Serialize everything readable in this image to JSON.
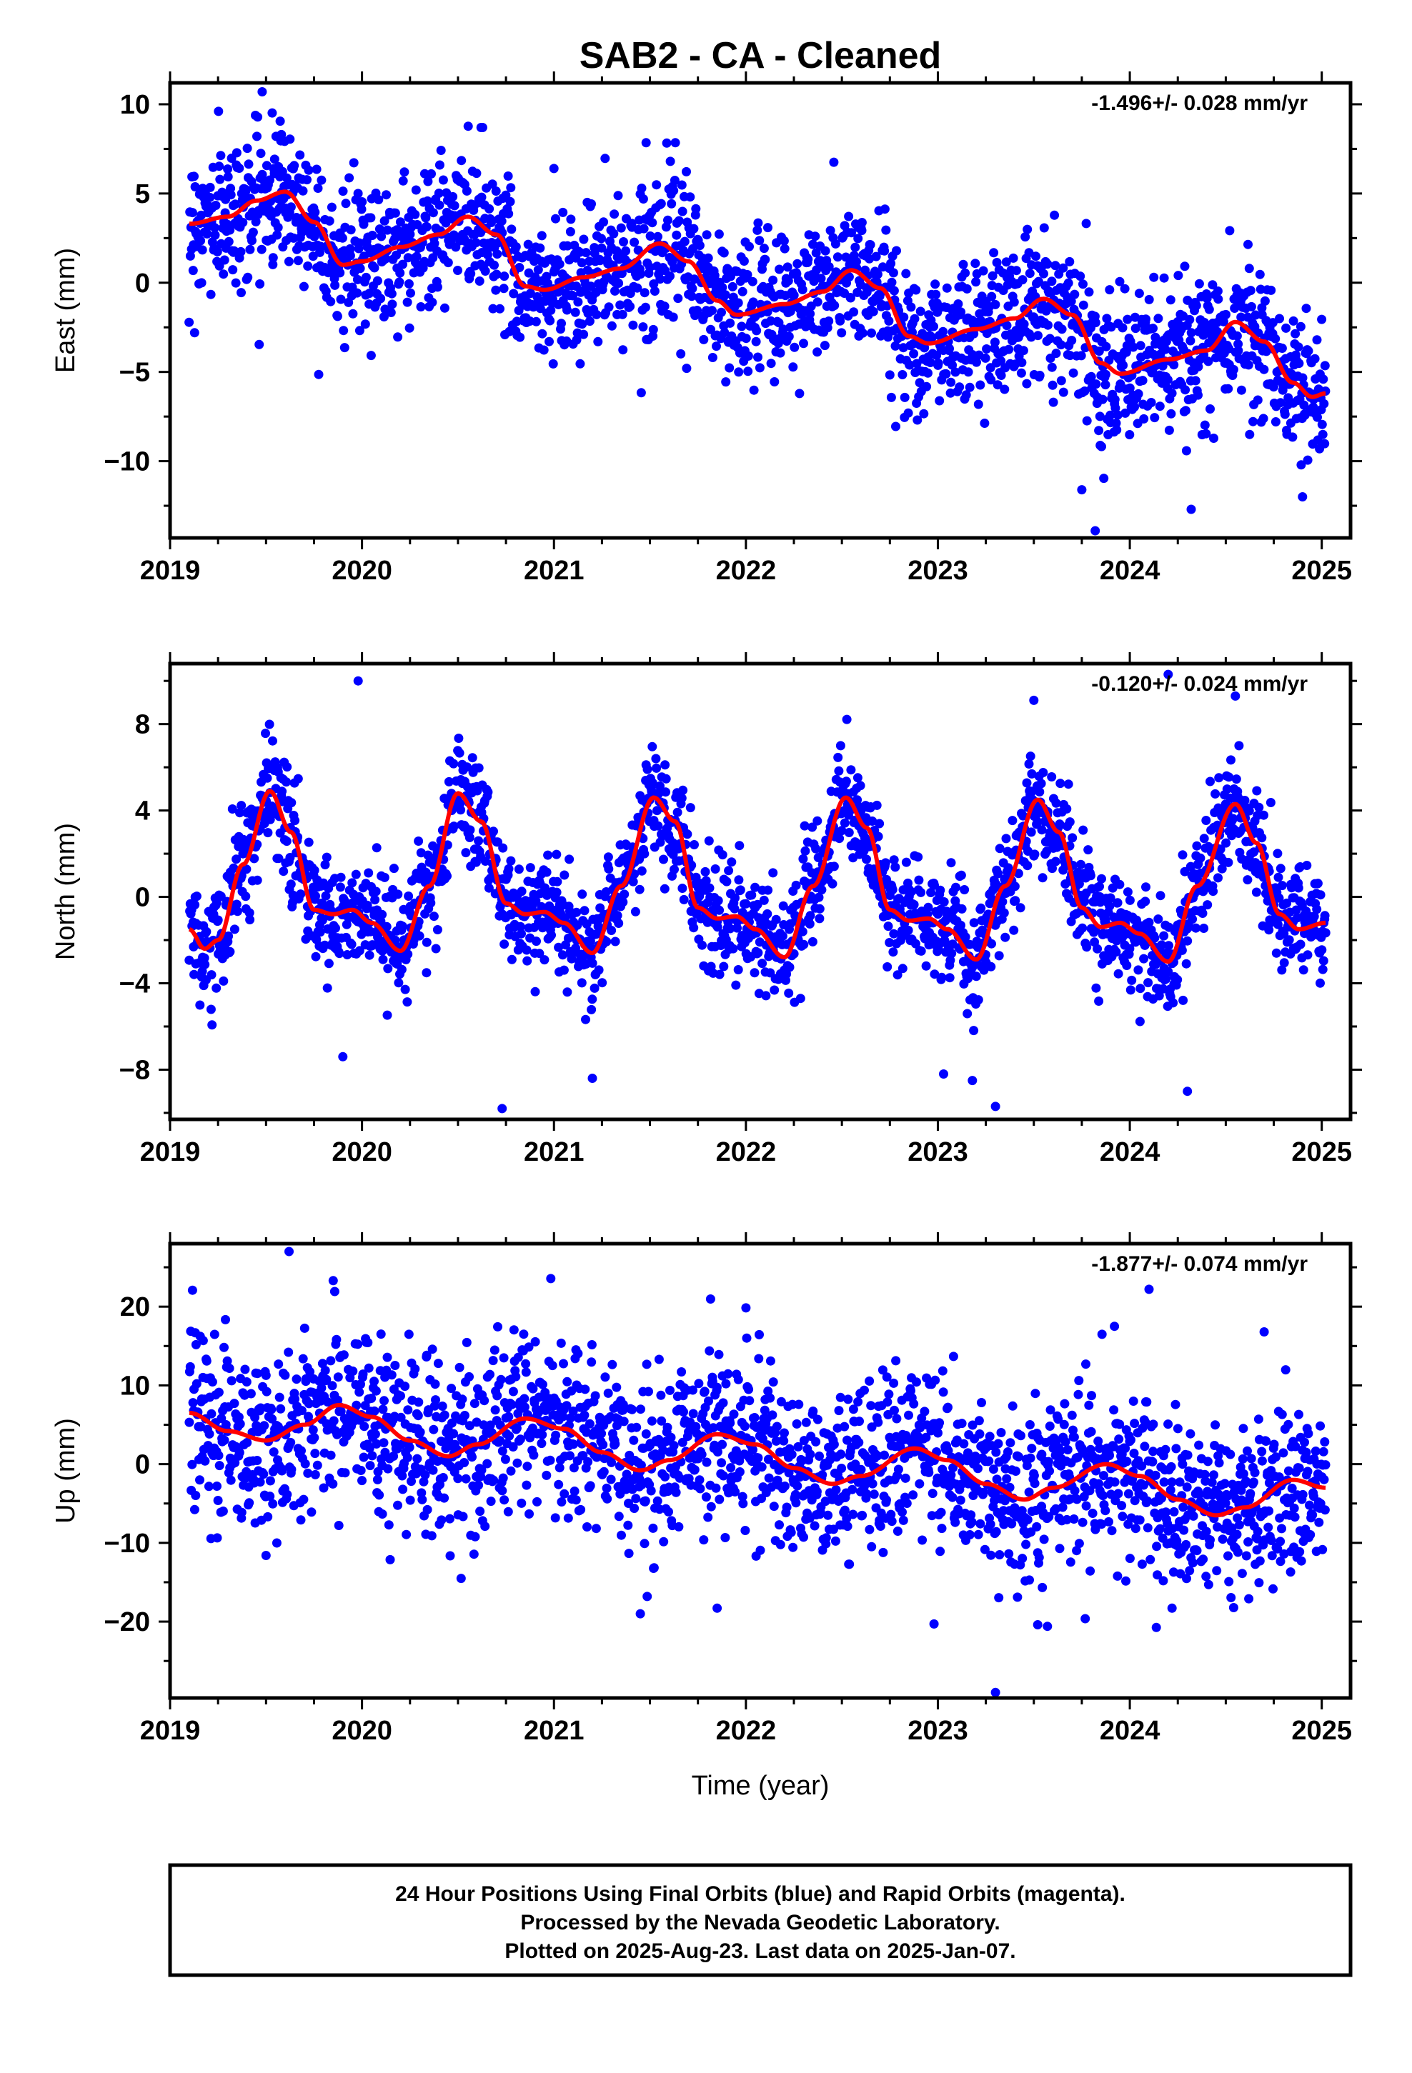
{
  "title": "SAB2  - CA - Cleaned",
  "xlabel": "Time (year)",
  "footer": {
    "line1": "24 Hour Positions Using Final Orbits (blue) and Rapid Orbits (magenta).",
    "line2": "Processed by the Nevada Geodetic Laboratory.",
    "line3": "Plotted on 2025-Aug-23. Last data on 2025-Jan-07."
  },
  "colors": {
    "points": "#0000ff",
    "model": "#ff0000",
    "frame": "#000000"
  },
  "chart_data": [
    {
      "type": "scatter",
      "ylabel": "East (mm)",
      "rate_label": "-1.496+/- 0.028 mm/yr",
      "xlim": [
        2019.0,
        2025.15
      ],
      "ylim": [
        -14.3,
        11.2
      ],
      "x_ticks": [
        2019,
        2020,
        2021,
        2022,
        2023,
        2024,
        2025
      ],
      "y_ticks": [
        -10,
        -5,
        0,
        5,
        10
      ],
      "y_tick_labels": [
        "−10",
        "−5",
        "0",
        "5",
        "10"
      ],
      "data_start": 2019.1,
      "data_end": 2025.02,
      "model_points": [
        [
          2019.1,
          3.3
        ],
        [
          2019.3,
          3.7
        ],
        [
          2019.45,
          4.6
        ],
        [
          2019.6,
          5.1
        ],
        [
          2019.75,
          3.4
        ],
        [
          2019.9,
          1.0
        ],
        [
          2020.0,
          1.2
        ],
        [
          2020.2,
          2.0
        ],
        [
          2020.4,
          2.7
        ],
        [
          2020.55,
          3.7
        ],
        [
          2020.7,
          2.7
        ],
        [
          2020.85,
          -0.2
        ],
        [
          2020.95,
          -0.4
        ],
        [
          2021.15,
          0.3
        ],
        [
          2021.35,
          0.8
        ],
        [
          2021.55,
          2.2
        ],
        [
          2021.7,
          1.2
        ],
        [
          2021.85,
          -1.0
        ],
        [
          2021.95,
          -1.8
        ],
        [
          2022.2,
          -1.2
        ],
        [
          2022.4,
          -0.5
        ],
        [
          2022.55,
          0.7
        ],
        [
          2022.7,
          -0.3
        ],
        [
          2022.85,
          -3.0
        ],
        [
          2022.95,
          -3.4
        ],
        [
          2023.2,
          -2.6
        ],
        [
          2023.4,
          -2.0
        ],
        [
          2023.55,
          -0.9
        ],
        [
          2023.7,
          -1.8
        ],
        [
          2023.85,
          -4.5
        ],
        [
          2023.95,
          -5.1
        ],
        [
          2024.2,
          -4.3
        ],
        [
          2024.4,
          -3.8
        ],
        [
          2024.55,
          -2.2
        ],
        [
          2024.7,
          -3.3
        ],
        [
          2024.85,
          -5.6
        ],
        [
          2024.95,
          -6.4
        ],
        [
          2025.02,
          -6.2
        ]
      ],
      "noise_sd": 2.0,
      "outliers": [
        [
          2019.48,
          10.7
        ],
        [
          2020.62,
          8.7
        ],
        [
          2023.82,
          -13.9
        ],
        [
          2024.32,
          -12.7
        ],
        [
          2019.58,
          8.3
        ],
        [
          2021.0,
          6.4
        ],
        [
          2023.75,
          -11.6
        ],
        [
          2024.9,
          -12.0
        ]
      ]
    },
    {
      "type": "scatter",
      "ylabel": "North (mm)",
      "rate_label": "-0.120+/- 0.024 mm/yr",
      "xlim": [
        2019.0,
        2025.15
      ],
      "ylim": [
        -10.3,
        10.8
      ],
      "x_ticks": [
        2019,
        2020,
        2021,
        2022,
        2023,
        2024,
        2025
      ],
      "y_ticks": [
        -8,
        -4,
        0,
        4,
        8
      ],
      "y_tick_labels": [
        "−8",
        "−4",
        "0",
        "4",
        "8"
      ],
      "data_start": 2019.1,
      "data_end": 2025.02,
      "model_points": [
        [
          2019.1,
          -1.5
        ],
        [
          2019.18,
          -2.4
        ],
        [
          2019.25,
          -2.0
        ],
        [
          2019.38,
          1.5
        ],
        [
          2019.52,
          4.9
        ],
        [
          2019.63,
          3.0
        ],
        [
          2019.75,
          -0.6
        ],
        [
          2019.85,
          -0.8
        ],
        [
          2019.95,
          -0.6
        ],
        [
          2020.05,
          -1.2
        ],
        [
          2020.2,
          -2.5
        ],
        [
          2020.35,
          0.5
        ],
        [
          2020.5,
          4.8
        ],
        [
          2020.62,
          3.5
        ],
        [
          2020.75,
          -0.3
        ],
        [
          2020.85,
          -0.8
        ],
        [
          2020.95,
          -0.7
        ],
        [
          2021.05,
          -1.2
        ],
        [
          2021.2,
          -2.6
        ],
        [
          2021.35,
          0.5
        ],
        [
          2021.52,
          4.6
        ],
        [
          2021.63,
          3.5
        ],
        [
          2021.75,
          -0.5
        ],
        [
          2021.85,
          -1.0
        ],
        [
          2021.95,
          -0.9
        ],
        [
          2022.05,
          -1.5
        ],
        [
          2022.2,
          -2.8
        ],
        [
          2022.35,
          0.5
        ],
        [
          2022.52,
          4.6
        ],
        [
          2022.63,
          3.2
        ],
        [
          2022.75,
          -0.6
        ],
        [
          2022.85,
          -1.1
        ],
        [
          2022.95,
          -1.0
        ],
        [
          2023.05,
          -1.5
        ],
        [
          2023.2,
          -2.9
        ],
        [
          2023.35,
          0.5
        ],
        [
          2023.52,
          4.5
        ],
        [
          2023.63,
          3.0
        ],
        [
          2023.75,
          -0.5
        ],
        [
          2023.85,
          -1.4
        ],
        [
          2023.95,
          -1.2
        ],
        [
          2024.05,
          -1.7
        ],
        [
          2024.2,
          -3.0
        ],
        [
          2024.35,
          0.5
        ],
        [
          2024.55,
          4.3
        ],
        [
          2024.66,
          2.5
        ],
        [
          2024.78,
          -0.8
        ],
        [
          2024.88,
          -1.5
        ],
        [
          2025.02,
          -1.2
        ]
      ],
      "noise_sd": 1.3,
      "outliers": [
        [
          2019.98,
          10.0
        ],
        [
          2024.2,
          10.3
        ],
        [
          2024.55,
          9.3
        ],
        [
          2023.5,
          9.1
        ],
        [
          2020.73,
          -9.8
        ],
        [
          2023.3,
          -9.7
        ],
        [
          2019.9,
          -7.4
        ],
        [
          2021.2,
          -8.4
        ],
        [
          2023.03,
          -8.2
        ],
        [
          2024.3,
          -9.0
        ],
        [
          2023.18,
          -8.5
        ]
      ]
    },
    {
      "type": "scatter",
      "ylabel": "Up (mm)",
      "rate_label": "-1.877+/- 0.074 mm/yr",
      "xlim": [
        2019.0,
        2025.15
      ],
      "ylim": [
        -29.7,
        28.0
      ],
      "x_ticks": [
        2019,
        2020,
        2021,
        2022,
        2023,
        2024,
        2025
      ],
      "y_ticks": [
        -20,
        -10,
        0,
        10,
        20
      ],
      "y_tick_labels": [
        "−20",
        "−10",
        "0",
        "10",
        "20"
      ],
      "data_start": 2019.1,
      "data_end": 2025.02,
      "model_points": [
        [
          2019.1,
          6.5
        ],
        [
          2019.3,
          4.2
        ],
        [
          2019.5,
          3.0
        ],
        [
          2019.7,
          5.0
        ],
        [
          2019.88,
          7.5
        ],
        [
          2020.05,
          6.0
        ],
        [
          2020.25,
          3.0
        ],
        [
          2020.45,
          1.0
        ],
        [
          2020.6,
          2.5
        ],
        [
          2020.85,
          5.8
        ],
        [
          2021.05,
          4.5
        ],
        [
          2021.25,
          1.5
        ],
        [
          2021.45,
          -0.8
        ],
        [
          2021.6,
          0.5
        ],
        [
          2021.85,
          3.8
        ],
        [
          2022.05,
          2.5
        ],
        [
          2022.25,
          -0.5
        ],
        [
          2022.45,
          -2.5
        ],
        [
          2022.6,
          -1.5
        ],
        [
          2022.88,
          2.0
        ],
        [
          2023.05,
          0.5
        ],
        [
          2023.25,
          -2.5
        ],
        [
          2023.45,
          -4.5
        ],
        [
          2023.6,
          -3.0
        ],
        [
          2023.88,
          0.0
        ],
        [
          2024.05,
          -1.5
        ],
        [
          2024.25,
          -4.5
        ],
        [
          2024.45,
          -6.5
        ],
        [
          2024.6,
          -5.5
        ],
        [
          2024.85,
          -2.0
        ],
        [
          2025.02,
          -3.0
        ]
      ],
      "noise_sd": 5.5,
      "outliers": [
        [
          2019.62,
          27.0
        ],
        [
          2019.85,
          23.3
        ],
        [
          2024.1,
          22.2
        ],
        [
          2023.92,
          17.5
        ],
        [
          2024.7,
          16.8
        ],
        [
          2023.3,
          -29.0
        ],
        [
          2022.98,
          -20.3
        ],
        [
          2023.52,
          -20.4
        ],
        [
          2021.45,
          -19.0
        ],
        [
          2019.5,
          -11.6
        ],
        [
          2021.85,
          -18.3
        ],
        [
          2024.22,
          -18.3
        ],
        [
          2024.62,
          -17.1
        ]
      ]
    }
  ]
}
